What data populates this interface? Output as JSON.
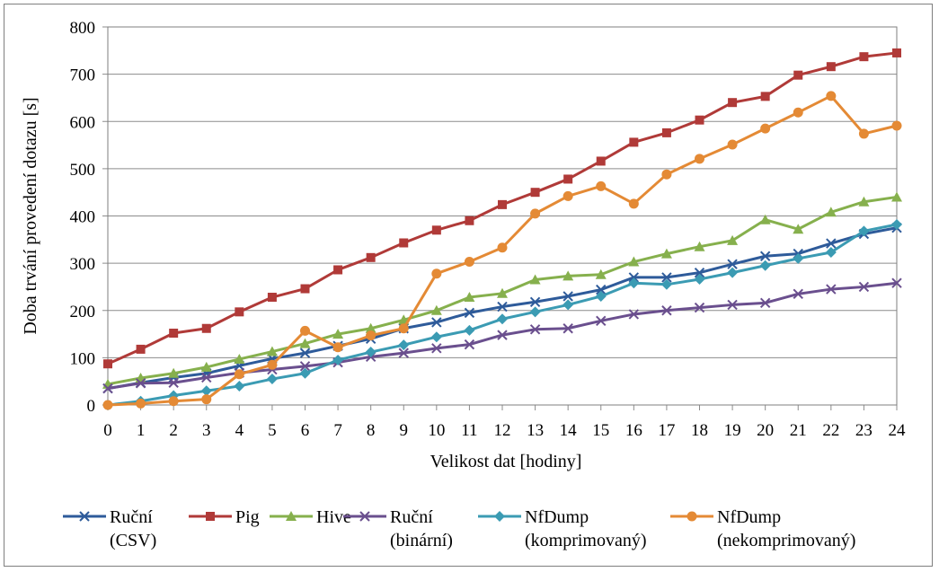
{
  "chart_data": {
    "type": "line",
    "title": "",
    "xlabel": "Velikost dat [hodiny]",
    "ylabel": "Doba trvání provedení dotazu [s]",
    "x": [
      0,
      1,
      2,
      3,
      4,
      5,
      6,
      7,
      8,
      9,
      10,
      11,
      12,
      13,
      14,
      15,
      16,
      17,
      18,
      19,
      20,
      21,
      22,
      23,
      24
    ],
    "xlim": [
      0,
      24
    ],
    "ylim": [
      0,
      800
    ],
    "yticks": [
      0,
      100,
      200,
      300,
      400,
      500,
      600,
      700,
      800
    ],
    "grid": true,
    "legend_position": "bottom",
    "series": [
      {
        "name": "Ruční (CSV)",
        "label_lines": [
          "Ruční",
          "(CSV)"
        ],
        "color": "#2e5b9a",
        "marker": "x",
        "values": [
          35,
          47,
          58,
          67,
          83,
          98,
          110,
          125,
          140,
          162,
          175,
          195,
          208,
          218,
          230,
          244,
          270,
          270,
          280,
          298,
          315,
          320,
          342,
          362,
          375
        ]
      },
      {
        "name": "Pig",
        "label_lines": [
          "Pig",
          ""
        ],
        "color": "#b03a38",
        "marker": "square",
        "values": [
          87,
          118,
          152,
          162,
          197,
          228,
          246,
          286,
          312,
          343,
          370,
          390,
          424,
          450,
          478,
          516,
          556,
          576,
          603,
          640,
          653,
          698,
          716,
          737,
          745
        ]
      },
      {
        "name": "Hive",
        "label_lines": [
          "Hive",
          ""
        ],
        "color": "#86b04d",
        "marker": "triangle",
        "values": [
          44,
          57,
          67,
          80,
          97,
          113,
          130,
          150,
          162,
          180,
          200,
          228,
          236,
          265,
          273,
          276,
          303,
          320,
          335,
          348,
          392,
          372,
          408,
          430,
          440
        ]
      },
      {
        "name": "Ruční (binární)",
        "label_lines": [
          "Ruční",
          "(binární)"
        ],
        "color": "#6a4f8e",
        "marker": "x",
        "values": [
          35,
          46,
          47,
          58,
          68,
          75,
          82,
          90,
          102,
          110,
          120,
          128,
          148,
          160,
          162,
          178,
          192,
          200,
          206,
          212,
          216,
          235,
          245,
          250,
          258
        ]
      },
      {
        "name": "NfDump (komprimovaný)",
        "label_lines": [
          "NfDump",
          "(komprimovaný)"
        ],
        "color": "#3b9bb3",
        "marker": "diamond",
        "values": [
          0,
          8,
          20,
          30,
          40,
          55,
          67,
          95,
          112,
          127,
          144,
          158,
          182,
          197,
          212,
          230,
          258,
          255,
          266,
          280,
          295,
          310,
          323,
          368,
          382
        ]
      },
      {
        "name": "NfDump (nekomprimovaný)",
        "label_lines": [
          "NfDump",
          "(nekomprimovaný)"
        ],
        "color": "#e48a35",
        "marker": "circle",
        "values": [
          0,
          3,
          8,
          12,
          65,
          85,
          157,
          122,
          147,
          162,
          278,
          303,
          333,
          405,
          442,
          463,
          426,
          488,
          521,
          551,
          585,
          619,
          654,
          574,
          591
        ]
      }
    ]
  }
}
